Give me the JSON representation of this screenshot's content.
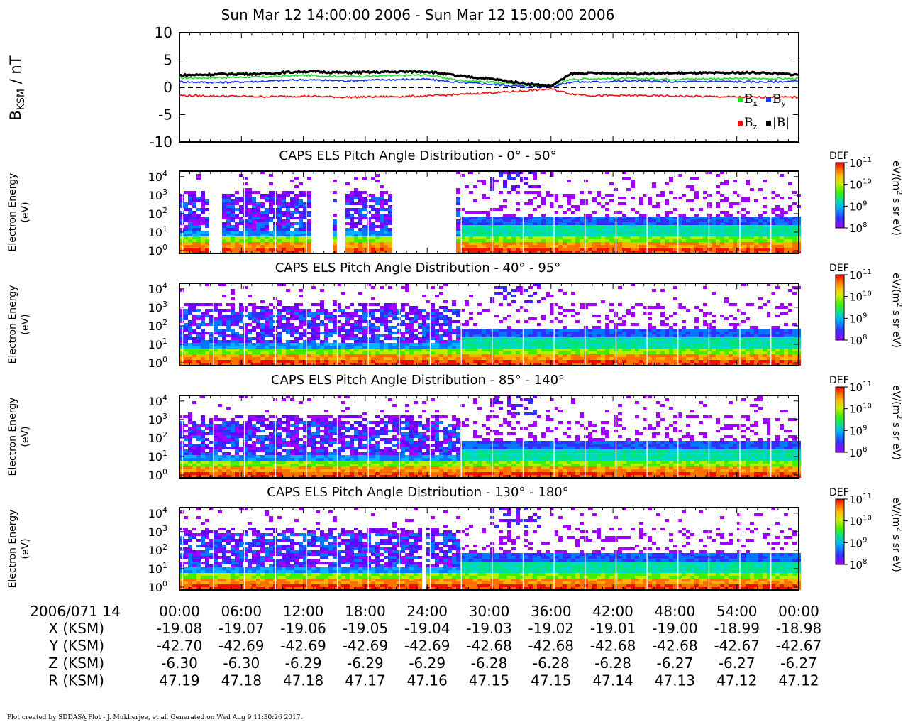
{
  "title": "Sun Mar 12 14:00:00 2006 - Sun Mar 12 15:00:00 2006",
  "footer": "Plot created by SDDAS/gPlot - J. Mukherjee, et al.  Generated on Wed Aug 9 11:30:26 2017.",
  "colors": {
    "bx": "#22dd22",
    "by": "#1133ee",
    "bz": "#ee1111",
    "btot": "#000000",
    "colorbar": [
      "#ffffff",
      "#9900ff",
      "#2222ff",
      "#00aaff",
      "#00e0a0",
      "#44ee00",
      "#ccee00",
      "#ffcc00",
      "#ff7700",
      "#ee0000"
    ]
  },
  "chart_data": [
    {
      "type": "line",
      "ylabel": "B_KSM / nT",
      "ylabel_main": "B",
      "ylabel_sub": "KSM",
      "ylabel_tail": " / nT",
      "ylim": [
        -10,
        10
      ],
      "yticks": [
        "10",
        "5",
        "0",
        "-5",
        "-10"
      ],
      "zero_line": "dashed",
      "legend": [
        "Bx",
        "By",
        "Bz",
        "|B|"
      ],
      "legend_placement": "right",
      "x_minutes": [
        0,
        4,
        8,
        12,
        16,
        20,
        24,
        27,
        30,
        33,
        36,
        38,
        40,
        44,
        48,
        52,
        56,
        60
      ],
      "series": [
        {
          "name": "Bx",
          "values": [
            1.7,
            1.8,
            1.9,
            2.2,
            2.0,
            2.1,
            2.3,
            1.3,
            1.0,
            0.5,
            0.3,
            1.5,
            1.6,
            1.6,
            1.5,
            1.6,
            1.6,
            1.6
          ]
        },
        {
          "name": "By",
          "values": [
            1.0,
            0.9,
            1.1,
            1.4,
            1.2,
            1.4,
            1.5,
            0.9,
            0.6,
            0.2,
            0.1,
            1.0,
            1.0,
            1.2,
            1.0,
            1.1,
            1.0,
            1.1
          ]
        },
        {
          "name": "Bz",
          "values": [
            -1.5,
            -1.6,
            -1.7,
            -1.6,
            -1.8,
            -1.7,
            -1.6,
            -1.3,
            -1.0,
            -0.7,
            -0.3,
            -1.2,
            -1.5,
            -1.5,
            -1.6,
            -1.7,
            -1.8,
            -1.8
          ]
        },
        {
          "name": "|B|",
          "values": [
            2.2,
            2.4,
            2.5,
            2.9,
            2.7,
            2.8,
            2.9,
            2.1,
            1.6,
            0.8,
            0.2,
            2.5,
            2.6,
            2.5,
            2.6,
            2.6,
            2.7,
            2.3
          ]
        }
      ]
    },
    {
      "type": "heatmap",
      "title": "CAPS ELS Pitch Angle Distribution - 0° - 50°",
      "ylabel": [
        "Electron Energy",
        "(eV)"
      ],
      "yticks": [
        "4",
        "3",
        "2",
        "1",
        "0"
      ],
      "colorbar": {
        "label": "DEF",
        "units": "eV/(m² s sr eV)",
        "ticks": [
          "11",
          "10",
          "9",
          "8"
        ],
        "range_log10": [
          8,
          11
        ]
      },
      "gaps_minutes": [
        [
          2.5,
          4
        ],
        [
          12.5,
          14.5
        ],
        [
          15,
          15.7
        ],
        [
          20.5,
          26.5
        ]
      ]
    },
    {
      "type": "heatmap",
      "title": "CAPS ELS Pitch Angle Distribution - 40° - 95°",
      "ylabel": [
        "Electron Energy",
        "(eV)"
      ],
      "yticks": [
        "4",
        "3",
        "2",
        "1",
        "0"
      ],
      "colorbar": {
        "label": "DEF",
        "units": "eV/(m² s sr eV)",
        "ticks": [
          "11",
          "10",
          "9",
          "8"
        ],
        "range_log10": [
          8,
          11
        ]
      },
      "gaps_minutes": []
    },
    {
      "type": "heatmap",
      "title": "CAPS ELS Pitch Angle Distribution - 85° - 140°",
      "ylabel": [
        "Electron Energy",
        "(eV)"
      ],
      "yticks": [
        "4",
        "3",
        "2",
        "1",
        "0"
      ],
      "colorbar": {
        "label": "DEF",
        "units": "eV/(m² s sr eV)",
        "ticks": [
          "11",
          "10",
          "9",
          "8"
        ],
        "range_log10": [
          8,
          11
        ]
      },
      "gaps_minutes": []
    },
    {
      "type": "heatmap",
      "title": "CAPS ELS Pitch Angle Distribution - 130° - 180°",
      "ylabel": [
        "Electron Energy",
        "(eV)"
      ],
      "yticks": [
        "4",
        "3",
        "2",
        "1",
        "0"
      ],
      "colorbar": {
        "label": "DEF",
        "units": "eV/(m² s sr eV)",
        "ticks": [
          "11",
          "10",
          "9",
          "8"
        ],
        "range_log10": [
          8,
          11
        ]
      },
      "gaps_minutes": [
        [
          23.3,
          23.9
        ]
      ]
    }
  ],
  "xaxis": {
    "date_label": "2006/071 14",
    "ticks": [
      "00:00",
      "06:00",
      "12:00",
      "18:00",
      "24:00",
      "30:00",
      "36:00",
      "42:00",
      "48:00",
      "54:00",
      "00:00"
    ]
  },
  "ephemeris": [
    {
      "label": "X (KSM)",
      "values": [
        "-19.08",
        "-19.07",
        "-19.06",
        "-19.05",
        "-19.04",
        "-19.03",
        "-19.02",
        "-19.01",
        "-19.00",
        "-18.99",
        "-18.98"
      ]
    },
    {
      "label": "Y (KSM)",
      "values": [
        "-42.70",
        "-42.69",
        "-42.69",
        "-42.69",
        "-42.69",
        "-42.68",
        "-42.68",
        "-42.68",
        "-42.68",
        "-42.67",
        "-42.67"
      ]
    },
    {
      "label": "Z (KSM)",
      "values": [
        "-6.30",
        "-6.30",
        "-6.29",
        "-6.29",
        "-6.29",
        "-6.28",
        "-6.28",
        "-6.28",
        "-6.27",
        "-6.27",
        "-6.27"
      ]
    },
    {
      "label": "R (KSM)",
      "values": [
        "47.19",
        "47.18",
        "47.18",
        "47.17",
        "47.16",
        "47.15",
        "47.15",
        "47.14",
        "47.13",
        "47.12",
        "47.12"
      ]
    }
  ]
}
